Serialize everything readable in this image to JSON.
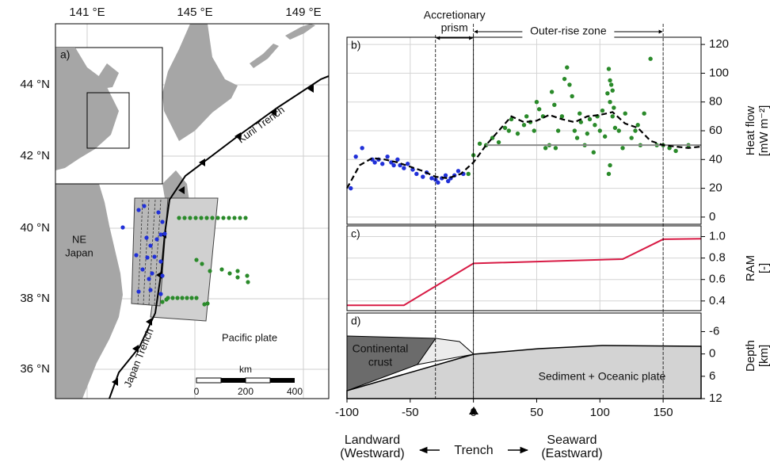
{
  "map": {
    "panel_label": "a)",
    "lon_labels": [
      "141 °E",
      "145 °E",
      "149 °E"
    ],
    "lat_labels": [
      "44 °N",
      "42 °N",
      "40 °N",
      "38 °N",
      "36 °N"
    ],
    "region_label": [
      "NE",
      "Japan"
    ],
    "trench_labels": [
      "Kuril Trench",
      "Japan Trench"
    ],
    "plate_label": "Pacific plate",
    "scale": {
      "unit": "km",
      "labels": [
        "0",
        "200",
        "400"
      ]
    }
  },
  "chart_data": [
    {
      "type": "scatter",
      "panel_label": "b)",
      "y_label": [
        "Heat flow",
        "[mW m⁻²]"
      ],
      "xlim": [
        -100,
        180
      ],
      "ylim": [
        -5,
        125
      ],
      "yticks": [
        0,
        20,
        40,
        60,
        80,
        100,
        120
      ],
      "grid": true,
      "series": [
        {
          "type": "scatter",
          "color": "#2030d8",
          "x": [
            -97,
            -93,
            -88,
            -80,
            -78,
            -75,
            -72,
            -68,
            -65,
            -63,
            -60,
            -58,
            -55,
            -52,
            -48,
            -45,
            -40,
            -37,
            -33,
            -30,
            -28,
            -25,
            -22,
            -20,
            -18,
            -15,
            -12,
            -8
          ],
          "values": [
            20,
            42,
            48,
            40,
            38,
            40,
            37,
            42,
            38,
            36,
            40,
            36,
            34,
            37,
            33,
            30,
            28,
            31,
            27,
            26,
            24,
            27,
            29,
            25,
            27,
            29,
            32,
            30
          ]
        },
        {
          "type": "scatter",
          "color": "#2a8a2a",
          "x": [
            -4,
            0,
            5,
            10,
            15,
            20,
            25,
            28,
            30,
            35,
            40,
            42,
            45,
            48,
            50,
            52,
            55,
            57,
            60,
            62,
            64,
            65,
            67,
            70,
            72,
            74,
            76,
            78,
            80,
            82,
            84,
            85,
            88,
            90,
            92,
            95,
            96,
            98,
            100,
            102,
            104,
            106,
            107,
            108,
            108,
            109,
            110,
            110,
            111,
            112,
            107,
            108,
            115,
            118,
            120,
            125,
            128,
            130,
            132,
            135,
            140,
            145,
            150,
            155,
            160,
            170
          ],
          "values": [
            30,
            43,
            51,
            50,
            55,
            52,
            62,
            60,
            68,
            58,
            64,
            70,
            66,
            60,
            80,
            75,
            70,
            48,
            50,
            87,
            78,
            48,
            60,
            70,
            96,
            104,
            92,
            84,
            60,
            55,
            72,
            66,
            50,
            58,
            68,
            45,
            64,
            70,
            60,
            74,
            56,
            86,
            103,
            95,
            80,
            92,
            88,
            70,
            76,
            62,
            30,
            36,
            60,
            48,
            72,
            55,
            60,
            64,
            50,
            72,
            110,
            50,
            50,
            48,
            46,
            50
          ]
        },
        {
          "type": "line",
          "color": "#8c8c8c",
          "x": [
            10,
            180
          ],
          "values": [
            50,
            50
          ]
        },
        {
          "type": "line",
          "dash": true,
          "color": "#000000",
          "x": [
            -100,
            -90,
            -80,
            -70,
            -60,
            -50,
            -40,
            -30,
            -20,
            -10,
            0,
            10,
            20,
            30,
            40,
            50,
            60,
            70,
            80,
            90,
            100,
            110,
            120,
            130,
            140,
            150,
            160,
            170,
            180
          ],
          "values": [
            20,
            36,
            41,
            40,
            38,
            35,
            32,
            28,
            27,
            30,
            38,
            50,
            60,
            70,
            66,
            67,
            71,
            68,
            66,
            70,
            71,
            73,
            65,
            62,
            53,
            50,
            49,
            48,
            49
          ]
        }
      ]
    },
    {
      "type": "line",
      "panel_label": "c)",
      "y_label": [
        "RAM",
        "[-]"
      ],
      "xlim": [
        -100,
        180
      ],
      "ylim": [
        0.31,
        1.1
      ],
      "yticks": [
        0.4,
        0.6,
        0.8,
        {
          "value": 1,
          "label": "1.0"
        }
      ],
      "grid": true,
      "series": [
        {
          "type": "line",
          "color": "#d81b45",
          "x": [
            -100,
            -55,
            0,
            118,
            150,
            180
          ],
          "values": [
            0.36,
            0.36,
            0.75,
            0.79,
            0.975,
            0.98
          ]
        }
      ]
    },
    {
      "type": "section",
      "panel_label": "d)",
      "y_label": [
        "Depth",
        "[km]"
      ],
      "xlim": [
        -100,
        180
      ],
      "xticks": [
        -100,
        -50,
        0,
        50,
        100,
        150
      ],
      "ylim": [
        -11,
        12
      ],
      "y_inverted": true,
      "yticks": [
        -6,
        0,
        6,
        12
      ],
      "labels": {
        "continental": [
          "Continental",
          "crust"
        ],
        "oceanic": "Sediment + Oceanic plate"
      }
    }
  ],
  "zones": [
    {
      "label": [
        "Accretionary",
        "prism"
      ],
      "x_range": [
        -30,
        0
      ]
    },
    {
      "label": "Outer-rise zone",
      "x_range": [
        0,
        150
      ]
    }
  ],
  "direction": {
    "landward": [
      "Landward",
      "(Westward)"
    ],
    "trench": "Trench",
    "seaward": [
      "Seaward",
      "(Eastward)"
    ]
  }
}
